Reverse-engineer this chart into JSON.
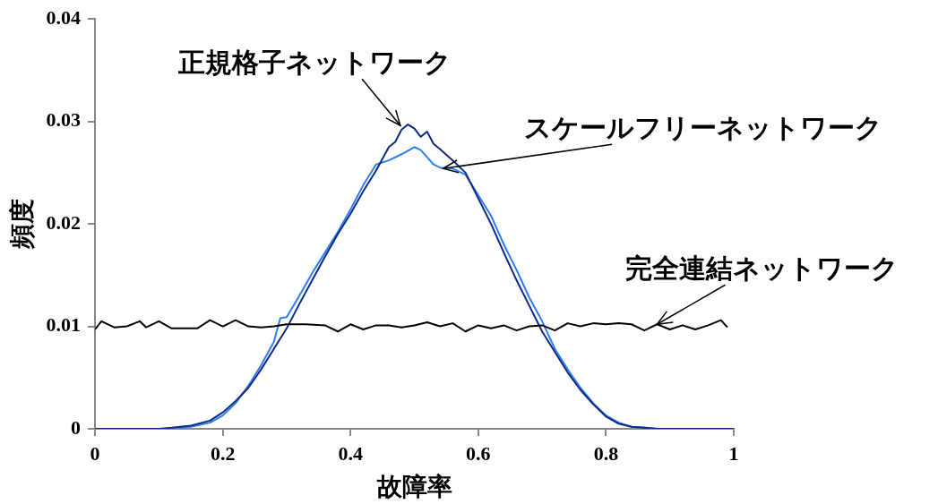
{
  "chart_data": {
    "type": "line",
    "xlabel": "故障率",
    "ylabel": "頻度",
    "xlim": [
      0,
      1
    ],
    "ylim": [
      0,
      0.04
    ],
    "xticks": [
      0,
      0.2,
      0.4,
      0.6,
      0.8,
      1
    ],
    "yticks": [
      0,
      0.01,
      0.02,
      0.03,
      0.04
    ],
    "grid": false,
    "legend": false,
    "marker": "none",
    "line_style": "solid",
    "series": [
      {
        "color": "#000000",
        "x": [
          0,
          0.01,
          0.03,
          0.05,
          0.07,
          0.08,
          0.1,
          0.12,
          0.14,
          0.16,
          0.18,
          0.2,
          0.22,
          0.24,
          0.26,
          0.28,
          0.3,
          0.33,
          0.36,
          0.38,
          0.4,
          0.42,
          0.44,
          0.46,
          0.48,
          0.5,
          0.52,
          0.54,
          0.56,
          0.58,
          0.6,
          0.62,
          0.64,
          0.66,
          0.68,
          0.7,
          0.72,
          0.74,
          0.76,
          0.78,
          0.8,
          0.82,
          0.84,
          0.86,
          0.88,
          0.9,
          0.92,
          0.94,
          0.96,
          0.98,
          0.99
        ],
        "values": [
          0.0097,
          0.0105,
          0.0099,
          0.01,
          0.0105,
          0.0099,
          0.0105,
          0.0098,
          0.0098,
          0.0098,
          0.0106,
          0.01,
          0.0106,
          0.01,
          0.0099,
          0.01,
          0.0102,
          0.0102,
          0.0101,
          0.0095,
          0.0102,
          0.0097,
          0.0101,
          0.0101,
          0.0099,
          0.0101,
          0.0104,
          0.01,
          0.0103,
          0.0095,
          0.0101,
          0.0098,
          0.0101,
          0.0096,
          0.01,
          0.0101,
          0.0096,
          0.0103,
          0.01,
          0.0103,
          0.0102,
          0.0103,
          0.0102,
          0.0096,
          0.0102,
          0.0097,
          0.0101,
          0.0097,
          0.0101,
          0.0106,
          0.0099
        ]
      },
      {
        "color": "#0d2a85",
        "x": [
          0,
          0.1,
          0.12,
          0.15,
          0.18,
          0.2,
          0.22,
          0.24,
          0.26,
          0.28,
          0.3,
          0.32,
          0.34,
          0.36,
          0.38,
          0.4,
          0.42,
          0.44,
          0.46,
          0.47,
          0.48,
          0.49,
          0.5,
          0.51,
          0.52,
          0.53,
          0.54,
          0.56,
          0.58,
          0.6,
          0.62,
          0.64,
          0.66,
          0.68,
          0.7,
          0.72,
          0.74,
          0.76,
          0.78,
          0.8,
          0.82,
          0.84,
          0.86,
          0.88,
          1
        ],
        "values": [
          0,
          0,
          0.0001,
          0.0003,
          0.0008,
          0.0016,
          0.0027,
          0.004,
          0.0058,
          0.0078,
          0.0098,
          0.0122,
          0.0145,
          0.0168,
          0.019,
          0.021,
          0.0232,
          0.0252,
          0.0275,
          0.028,
          0.0292,
          0.0297,
          0.0293,
          0.0285,
          0.029,
          0.0278,
          0.0273,
          0.0262,
          0.025,
          0.0225,
          0.02,
          0.0172,
          0.0145,
          0.012,
          0.0095,
          0.0075,
          0.0055,
          0.0038,
          0.0024,
          0.0012,
          0.0005,
          0.0002,
          0.0001,
          0,
          0
        ]
      },
      {
        "color": "#2f7ef0",
        "x": [
          0,
          0.1,
          0.12,
          0.15,
          0.18,
          0.2,
          0.22,
          0.24,
          0.26,
          0.28,
          0.29,
          0.3,
          0.32,
          0.34,
          0.36,
          0.38,
          0.4,
          0.42,
          0.44,
          0.46,
          0.48,
          0.5,
          0.51,
          0.52,
          0.53,
          0.54,
          0.56,
          0.58,
          0.6,
          0.62,
          0.64,
          0.66,
          0.68,
          0.7,
          0.72,
          0.74,
          0.76,
          0.78,
          0.8,
          0.82,
          0.84,
          0.86,
          0.88,
          1
        ],
        "values": [
          0,
          0,
          0,
          0.0002,
          0.0006,
          0.0013,
          0.0025,
          0.0042,
          0.0062,
          0.0085,
          0.0108,
          0.0109,
          0.013,
          0.0152,
          0.0172,
          0.0192,
          0.0214,
          0.0238,
          0.0258,
          0.0262,
          0.0268,
          0.0275,
          0.0272,
          0.0265,
          0.0258,
          0.0255,
          0.0254,
          0.0248,
          0.0228,
          0.0208,
          0.018,
          0.0155,
          0.0128,
          0.0105,
          0.0078,
          0.0058,
          0.004,
          0.0025,
          0.0013,
          0.0006,
          0.0002,
          0.0001,
          0,
          0
        ]
      }
    ],
    "annotations": [
      {
        "text": "正規格子ネットワーク",
        "x": 0.478,
        "y": 0.0296
      },
      {
        "text": "スケールフリーネットワーク",
        "x": 0.545,
        "y": 0.0254
      },
      {
        "text": "完全連結ネットワーク",
        "x": 0.88,
        "y": 0.0102
      }
    ]
  }
}
